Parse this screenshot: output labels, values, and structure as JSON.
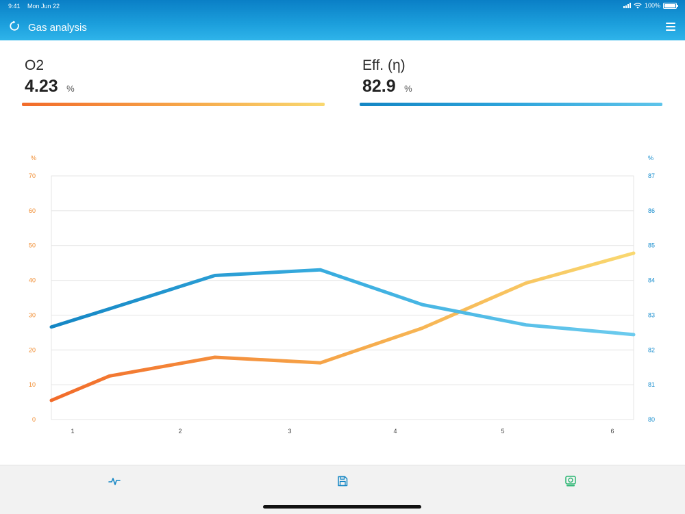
{
  "status_bar": {
    "time": "9:41",
    "date": "Mon Jun 22",
    "battery": "100%"
  },
  "header": {
    "title": "Gas analysis",
    "refresh_icon": "refresh-icon",
    "menu_icon": "hamburger-menu-icon"
  },
  "readings": [
    {
      "label": "O2",
      "value": "4.23",
      "unit": "%"
    },
    {
      "label": "Eff. (η)",
      "value": "82.9",
      "unit": "%"
    }
  ],
  "colors": {
    "header": "#1c9fdc",
    "o2_start": "#f26b2a",
    "o2_end": "#f9d870",
    "eff_start": "#1486c4",
    "eff_end": "#5ec4ea",
    "save_icon": "#1486c4",
    "device_icon": "#2bb673"
  },
  "chart_data": {
    "type": "line",
    "categories": [
      "1",
      "2",
      "3",
      "4",
      "5",
      "6"
    ],
    "x": [
      0.5,
      1.05,
      2.05,
      3.05,
      4.02,
      5.0,
      6.02
    ],
    "left_axis": {
      "unit": "%",
      "ylim": [
        0,
        70
      ],
      "ticks": [
        "0",
        "10",
        "20",
        "30",
        "40",
        "50",
        "60",
        "70"
      ]
    },
    "right_axis": {
      "unit": "%",
      "ylim": [
        80,
        87
      ],
      "ticks": [
        "80",
        "81",
        "82",
        "83",
        "84",
        "85",
        "86",
        "87"
      ]
    },
    "series": [
      {
        "axis": "left",
        "values": [
          5.5,
          12.5,
          17.9,
          16.3,
          26.3,
          39.2,
          47.8
        ]
      },
      {
        "axis": "right",
        "values": [
          82.66,
          83.18,
          84.14,
          84.3,
          83.3,
          82.72,
          82.44
        ]
      }
    ],
    "grid": true
  },
  "bottom_tabs": [
    {
      "name": "analysis",
      "icon": "pulse-icon"
    },
    {
      "name": "save",
      "icon": "save-icon"
    },
    {
      "name": "device",
      "icon": "analyzer-device-icon"
    }
  ]
}
